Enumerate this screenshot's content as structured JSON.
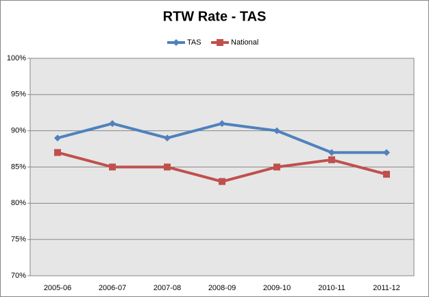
{
  "chart_data": {
    "type": "line",
    "title": "RTW Rate - TAS",
    "categories": [
      "2005-06",
      "2006-07",
      "2007-08",
      "2008-09",
      "2009-10",
      "2010-11",
      "2011-12"
    ],
    "series": [
      {
        "name": "TAS",
        "color": "#4f81bd",
        "marker": "diamond",
        "values": [
          89,
          91,
          89,
          91,
          90,
          87,
          87
        ]
      },
      {
        "name": "National",
        "color": "#c0504d",
        "marker": "square",
        "values": [
          87,
          85,
          85,
          83,
          85,
          86,
          84
        ]
      }
    ],
    "ylim": [
      70,
      100
    ],
    "yticks": [
      {
        "value": 70,
        "label": "70%"
      },
      {
        "value": 75,
        "label": "75%"
      },
      {
        "value": 80,
        "label": "80%"
      },
      {
        "value": 85,
        "label": "85%"
      },
      {
        "value": 90,
        "label": "90%"
      },
      {
        "value": 95,
        "label": "95%"
      },
      {
        "value": 100,
        "label": "100%"
      }
    ],
    "grid": true,
    "legend": "top"
  }
}
